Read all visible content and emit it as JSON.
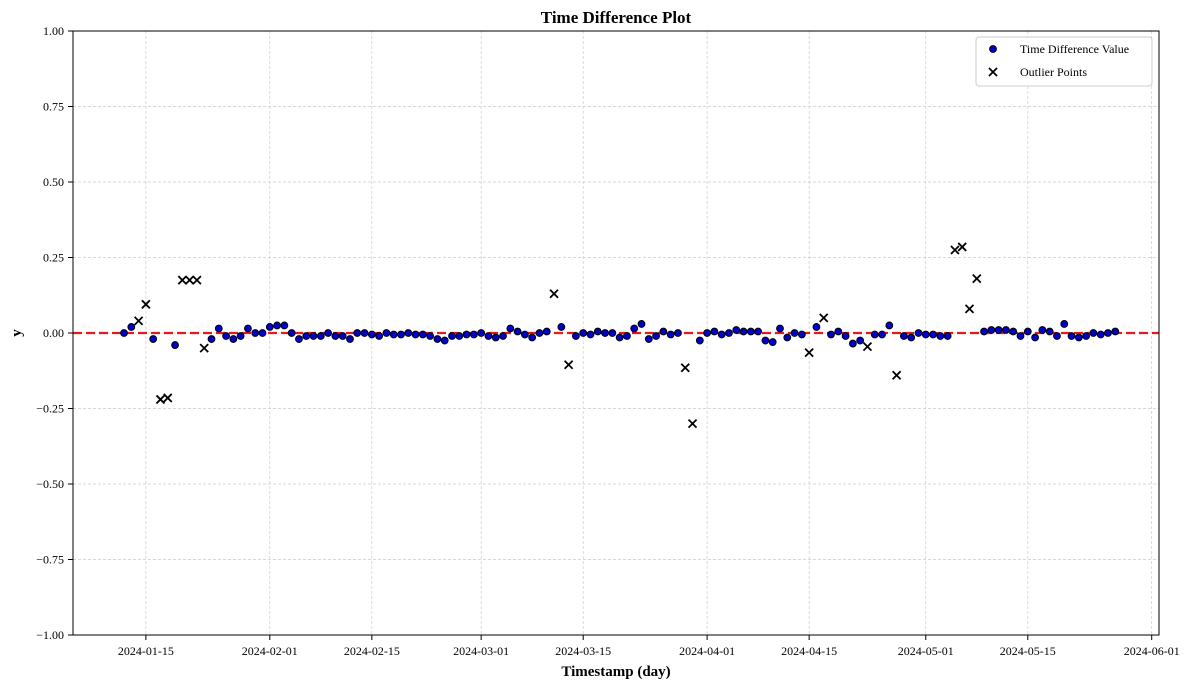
{
  "chart_data": {
    "type": "scatter",
    "title": "Time Difference Plot",
    "xlabel": "Timestamp (day)",
    "ylabel": "y",
    "ylim": [
      -1.0,
      1.0
    ],
    "xlim": [
      "2024-01-05",
      "2024-06-02"
    ],
    "x_ticks": [
      "2024-01-15",
      "2024-02-01",
      "2024-02-15",
      "2024-03-01",
      "2024-03-15",
      "2024-04-01",
      "2024-04-15",
      "2024-05-01",
      "2024-05-15",
      "2024-06-01"
    ],
    "y_ticks": [
      "1.00",
      "0.75",
      "0.50",
      "0.25",
      "0.00",
      "−0.25",
      "−0.50",
      "−0.75",
      "−1.00"
    ],
    "y_tick_values": [
      1.0,
      0.75,
      0.5,
      0.25,
      0.0,
      -0.25,
      -0.5,
      -0.75,
      -1.0
    ],
    "grid": true,
    "legend_position": "top-right",
    "reference_line": {
      "y": 0.0,
      "color": "#e41a1c",
      "style": "dashed"
    },
    "series": [
      {
        "name": "Time Difference Value",
        "marker": "circle",
        "color": "#0000cd",
        "points": [
          [
            "2024-01-12",
            0.0
          ],
          [
            "2024-01-13",
            0.02
          ],
          [
            "2024-01-16",
            -0.02
          ],
          [
            "2024-01-19",
            -0.04
          ],
          [
            "2024-01-24",
            -0.02
          ],
          [
            "2024-01-25",
            0.015
          ],
          [
            "2024-01-26",
            -0.01
          ],
          [
            "2024-01-27",
            -0.02
          ],
          [
            "2024-01-28",
            -0.01
          ],
          [
            "2024-01-29",
            0.015
          ],
          [
            "2024-01-30",
            0.0
          ],
          [
            "2024-01-31",
            0.0
          ],
          [
            "2024-02-01",
            0.02
          ],
          [
            "2024-02-02",
            0.025
          ],
          [
            "2024-02-03",
            0.025
          ],
          [
            "2024-02-04",
            0.0
          ],
          [
            "2024-02-05",
            -0.02
          ],
          [
            "2024-02-06",
            -0.01
          ],
          [
            "2024-02-07",
            -0.01
          ],
          [
            "2024-02-08",
            -0.01
          ],
          [
            "2024-02-09",
            0.0
          ],
          [
            "2024-02-10",
            -0.01
          ],
          [
            "2024-02-11",
            -0.01
          ],
          [
            "2024-02-12",
            -0.02
          ],
          [
            "2024-02-13",
            0.0
          ],
          [
            "2024-02-14",
            0.0
          ],
          [
            "2024-02-15",
            -0.005
          ],
          [
            "2024-02-16",
            -0.01
          ],
          [
            "2024-02-17",
            0.0
          ],
          [
            "2024-02-18",
            -0.005
          ],
          [
            "2024-02-19",
            -0.005
          ],
          [
            "2024-02-20",
            0.0
          ],
          [
            "2024-02-21",
            -0.005
          ],
          [
            "2024-02-22",
            -0.005
          ],
          [
            "2024-02-23",
            -0.01
          ],
          [
            "2024-02-24",
            -0.02
          ],
          [
            "2024-02-25",
            -0.025
          ],
          [
            "2024-02-26",
            -0.01
          ],
          [
            "2024-02-27",
            -0.01
          ],
          [
            "2024-02-28",
            -0.005
          ],
          [
            "2024-02-29",
            -0.005
          ],
          [
            "2024-03-01",
            0.0
          ],
          [
            "2024-03-02",
            -0.01
          ],
          [
            "2024-03-03",
            -0.015
          ],
          [
            "2024-03-04",
            -0.01
          ],
          [
            "2024-03-05",
            0.015
          ],
          [
            "2024-03-06",
            0.005
          ],
          [
            "2024-03-07",
            -0.005
          ],
          [
            "2024-03-08",
            -0.015
          ],
          [
            "2024-03-09",
            0.0
          ],
          [
            "2024-03-10",
            0.005
          ],
          [
            "2024-03-12",
            0.02
          ],
          [
            "2024-03-14",
            -0.01
          ],
          [
            "2024-03-15",
            0.0
          ],
          [
            "2024-03-16",
            -0.005
          ],
          [
            "2024-03-17",
            0.005
          ],
          [
            "2024-03-18",
            0.0
          ],
          [
            "2024-03-19",
            0.0
          ],
          [
            "2024-03-20",
            -0.015
          ],
          [
            "2024-03-21",
            -0.01
          ],
          [
            "2024-03-22",
            0.015
          ],
          [
            "2024-03-23",
            0.03
          ],
          [
            "2024-03-24",
            -0.02
          ],
          [
            "2024-03-25",
            -0.01
          ],
          [
            "2024-03-26",
            0.005
          ],
          [
            "2024-03-27",
            -0.005
          ],
          [
            "2024-03-28",
            0.0
          ],
          [
            "2024-03-31",
            -0.025
          ],
          [
            "2024-04-01",
            0.0
          ],
          [
            "2024-04-02",
            0.005
          ],
          [
            "2024-04-03",
            -0.005
          ],
          [
            "2024-04-04",
            0.0
          ],
          [
            "2024-04-05",
            0.01
          ],
          [
            "2024-04-06",
            0.005
          ],
          [
            "2024-04-07",
            0.005
          ],
          [
            "2024-04-08",
            0.005
          ],
          [
            "2024-04-09",
            -0.025
          ],
          [
            "2024-04-10",
            -0.03
          ],
          [
            "2024-04-11",
            0.015
          ],
          [
            "2024-04-12",
            -0.015
          ],
          [
            "2024-04-13",
            0.0
          ],
          [
            "2024-04-14",
            -0.005
          ],
          [
            "2024-04-16",
            0.02
          ],
          [
            "2024-04-18",
            -0.005
          ],
          [
            "2024-04-19",
            0.005
          ],
          [
            "2024-04-20",
            -0.01
          ],
          [
            "2024-04-21",
            -0.035
          ],
          [
            "2024-04-22",
            -0.025
          ],
          [
            "2024-04-24",
            -0.005
          ],
          [
            "2024-04-25",
            -0.005
          ],
          [
            "2024-04-26",
            0.025
          ],
          [
            "2024-04-28",
            -0.01
          ],
          [
            "2024-04-29",
            -0.015
          ],
          [
            "2024-04-30",
            0.0
          ],
          [
            "2024-05-01",
            -0.005
          ],
          [
            "2024-05-02",
            -0.005
          ],
          [
            "2024-05-03",
            -0.01
          ],
          [
            "2024-05-04",
            -0.01
          ],
          [
            "2024-05-09",
            0.005
          ],
          [
            "2024-05-10",
            0.01
          ],
          [
            "2024-05-11",
            0.01
          ],
          [
            "2024-05-12",
            0.01
          ],
          [
            "2024-05-13",
            0.005
          ],
          [
            "2024-05-14",
            -0.01
          ],
          [
            "2024-05-15",
            0.005
          ],
          [
            "2024-05-16",
            -0.015
          ],
          [
            "2024-05-17",
            0.01
          ],
          [
            "2024-05-18",
            0.005
          ],
          [
            "2024-05-19",
            -0.01
          ],
          [
            "2024-05-20",
            0.03
          ],
          [
            "2024-05-21",
            -0.01
          ],
          [
            "2024-05-22",
            -0.015
          ],
          [
            "2024-05-23",
            -0.01
          ],
          [
            "2024-05-24",
            0.0
          ],
          [
            "2024-05-25",
            -0.005
          ],
          [
            "2024-05-26",
            0.0
          ],
          [
            "2024-05-27",
            0.005
          ]
        ]
      },
      {
        "name": "Outlier Points",
        "marker": "x",
        "color": "#000000",
        "points": [
          [
            "2024-01-14",
            0.04
          ],
          [
            "2024-01-15",
            0.095
          ],
          [
            "2024-01-17",
            -0.22
          ],
          [
            "2024-01-18",
            -0.215
          ],
          [
            "2024-01-20",
            0.175
          ],
          [
            "2024-01-21",
            0.175
          ],
          [
            "2024-01-22",
            0.175
          ],
          [
            "2024-01-23",
            -0.05
          ],
          [
            "2024-03-11",
            0.13
          ],
          [
            "2024-03-13",
            -0.105
          ],
          [
            "2024-03-29",
            -0.115
          ],
          [
            "2024-03-30",
            -0.3
          ],
          [
            "2024-04-15",
            -0.065
          ],
          [
            "2024-04-17",
            0.05
          ],
          [
            "2024-04-23",
            -0.045
          ],
          [
            "2024-04-27",
            -0.14
          ],
          [
            "2024-05-05",
            0.275
          ],
          [
            "2024-05-06",
            0.285
          ],
          [
            "2024-05-07",
            0.08
          ],
          [
            "2024-05-08",
            0.18
          ]
        ]
      }
    ]
  }
}
